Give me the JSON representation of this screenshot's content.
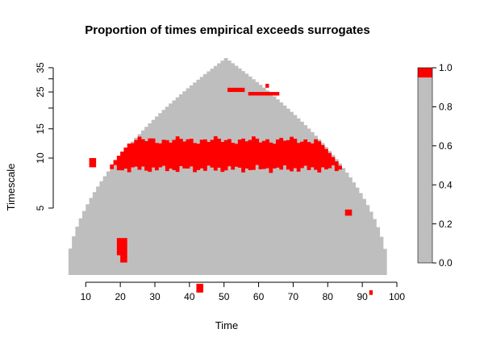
{
  "chart_data": {
    "type": "heatmap",
    "title": "Proportion of times empirical exceeds surrogates",
    "xlabel": "Time",
    "ylabel": "Timescale",
    "xlim": [
      2,
      100
    ],
    "x_ticks": [
      10,
      20,
      30,
      40,
      50,
      60,
      70,
      80,
      90,
      100
    ],
    "y_scale": "log",
    "y_ticks": [
      5,
      10,
      15,
      20,
      25,
      30,
      35
    ],
    "y_tick_labels": [
      "5",
      "10",
      "15",
      "",
      "25",
      "",
      "35"
    ],
    "colorbar": {
      "ticks": [
        "0.0",
        "0.2",
        "0.4",
        "0.6",
        "0.8",
        "1.0"
      ],
      "tick_values": [
        0.0,
        0.2,
        0.4,
        0.6,
        0.8,
        1.0
      ],
      "bands": [
        {
          "from": 0.0,
          "to": 0.95,
          "color": "#bebebe"
        },
        {
          "from": 0.95,
          "to": 1.0,
          "color": "#ff0000"
        }
      ]
    },
    "colors": {
      "not_exceeding": "#bebebe",
      "exceeding": "#ff0000"
    },
    "cone_of_influence": {
      "peak_time": 50,
      "peak_scale": 40,
      "start_time": 4,
      "end_time": 97
    },
    "exceed_regions": [
      {
        "name": "band-main",
        "time": [
          13,
          88
        ],
        "scale": [
          8.6,
          12.8
        ]
      },
      {
        "name": "upper-segment-1",
        "time": [
          51,
          56
        ],
        "scale": [
          25.0,
          26.5
        ]
      },
      {
        "name": "upper-segment-2",
        "time": [
          57,
          66
        ],
        "scale": [
          23.8,
          25.0
        ]
      },
      {
        "name": "upper-dot",
        "time": [
          62,
          63
        ],
        "scale": [
          26.5,
          28.0
        ]
      },
      {
        "name": "lower-cluster-1",
        "time": [
          19,
          22
        ],
        "scale": [
          2.6,
          3.3
        ]
      },
      {
        "name": "lower-cluster-2",
        "time": [
          20,
          22
        ],
        "scale": [
          2.35,
          2.6
        ]
      },
      {
        "name": "right-dot",
        "time": [
          85,
          87
        ],
        "scale": [
          4.5,
          4.9
        ]
      },
      {
        "name": "bottom-dot-1",
        "time": [
          42,
          44
        ],
        "scale": [
          1.55,
          1.75
        ]
      },
      {
        "name": "bottom-dot-2",
        "time": [
          92,
          93
        ],
        "scale": [
          1.5,
          1.6
        ]
      },
      {
        "name": "band-left-extension",
        "time": [
          11,
          13
        ],
        "scale": [
          8.8,
          10.0
        ]
      }
    ]
  }
}
